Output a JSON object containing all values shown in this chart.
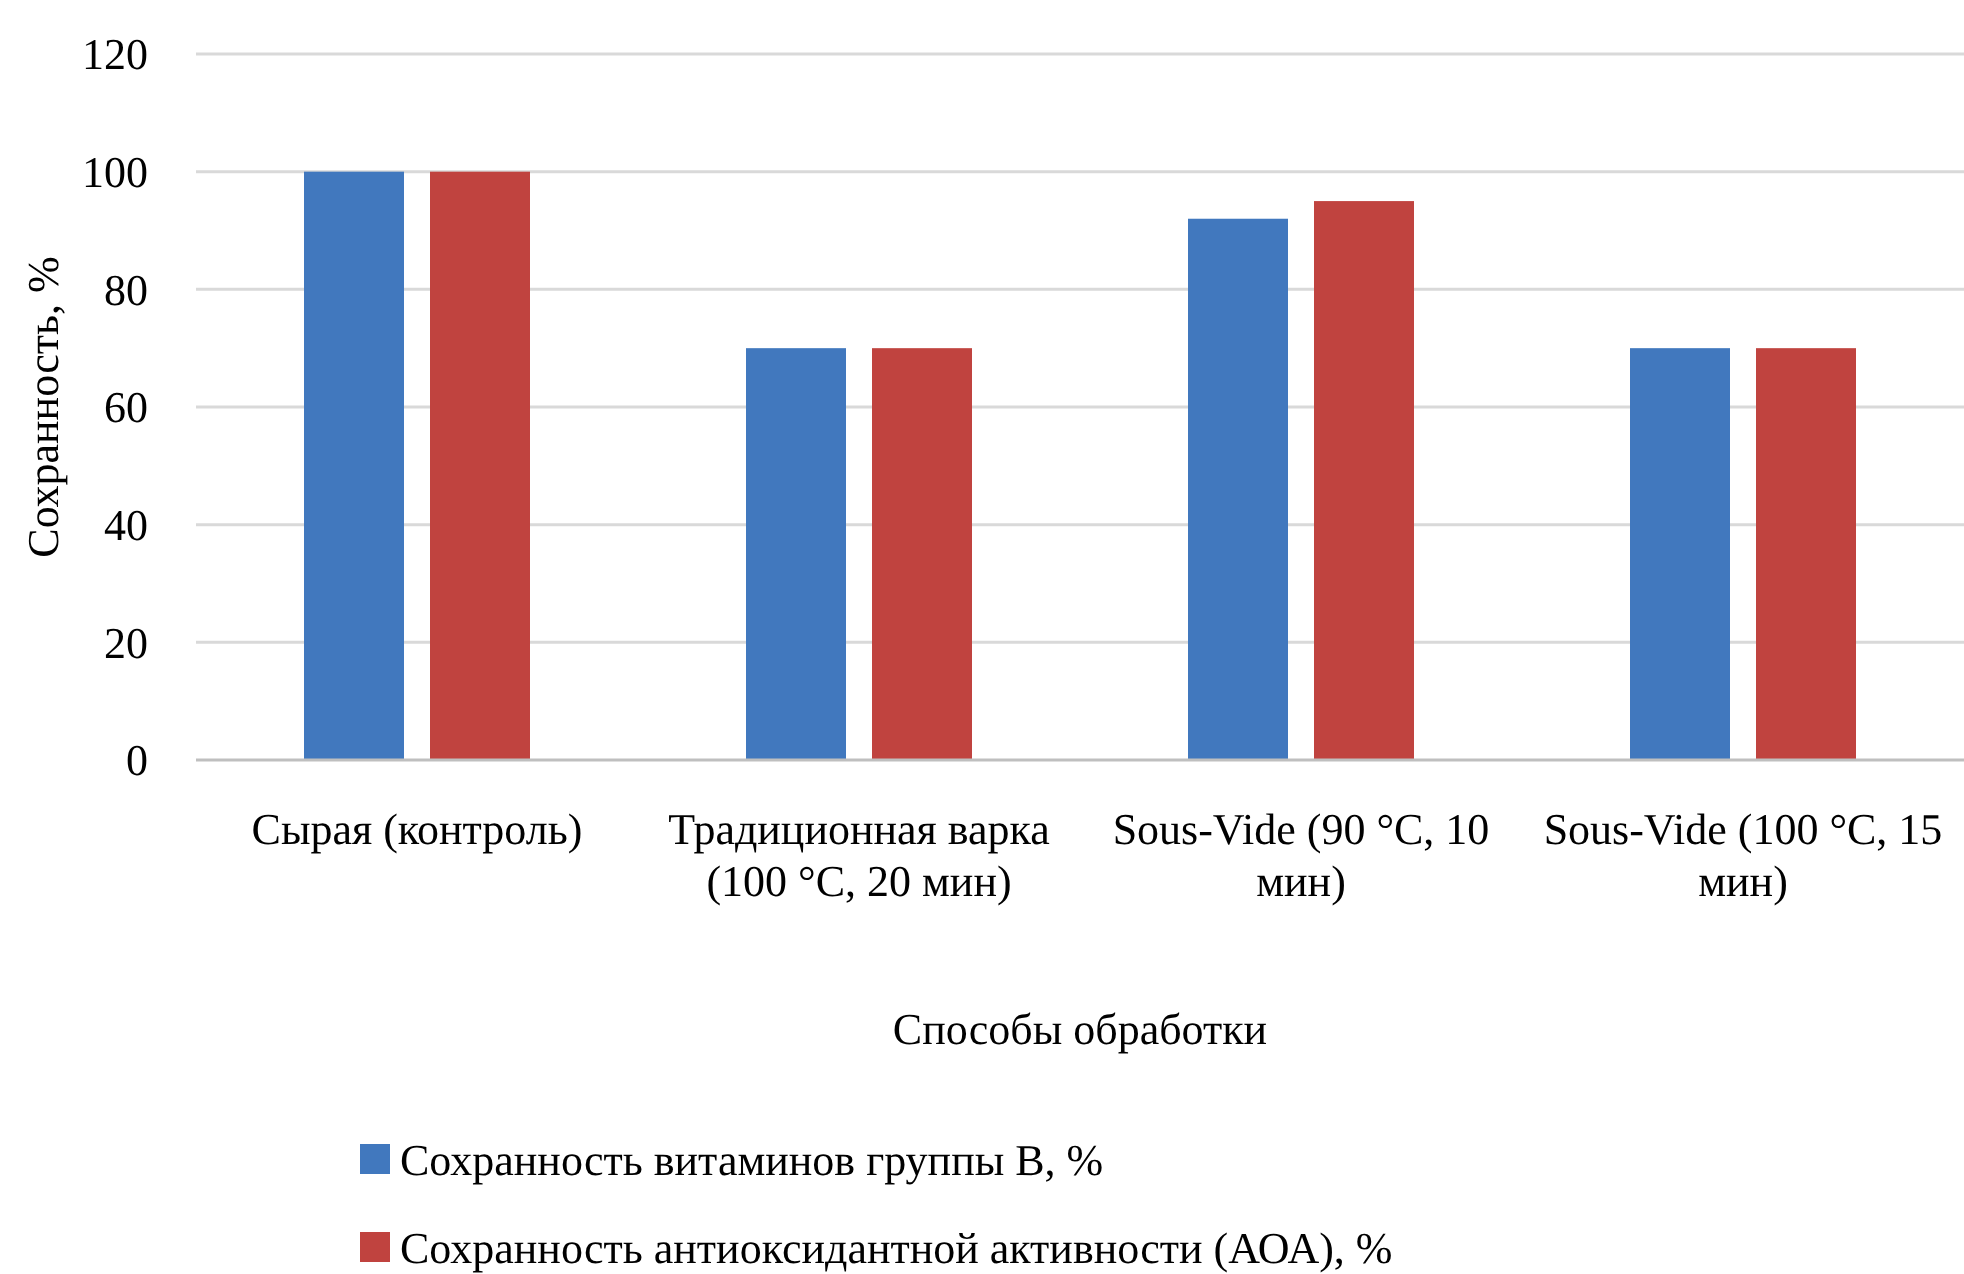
{
  "chart_data": {
    "type": "bar",
    "xlabel": "Способы обработки",
    "ylabel": "Сохранность, %",
    "categories": [
      "Сырая (контроль)",
      "Традиционная варка (100 °C, 20 мин)",
      "Sous-Vide (90 °C, 10 мин)",
      "Sous-Vide (100 °C, 15 мин)"
    ],
    "series": [
      {
        "name": "Сохранность витаминов группы B, %",
        "color": "#4178be",
        "values": [
          100,
          70,
          92,
          70
        ]
      },
      {
        "name": "Сохранность антиоксидантной активности (АОА), %",
        "color": "#c0433f",
        "values": [
          100,
          70,
          95,
          70
        ]
      }
    ],
    "ylim": [
      0,
      120
    ],
    "yticks": [
      0,
      20,
      40,
      60,
      80,
      100,
      120
    ],
    "grid": "y",
    "legend": "bottom"
  }
}
